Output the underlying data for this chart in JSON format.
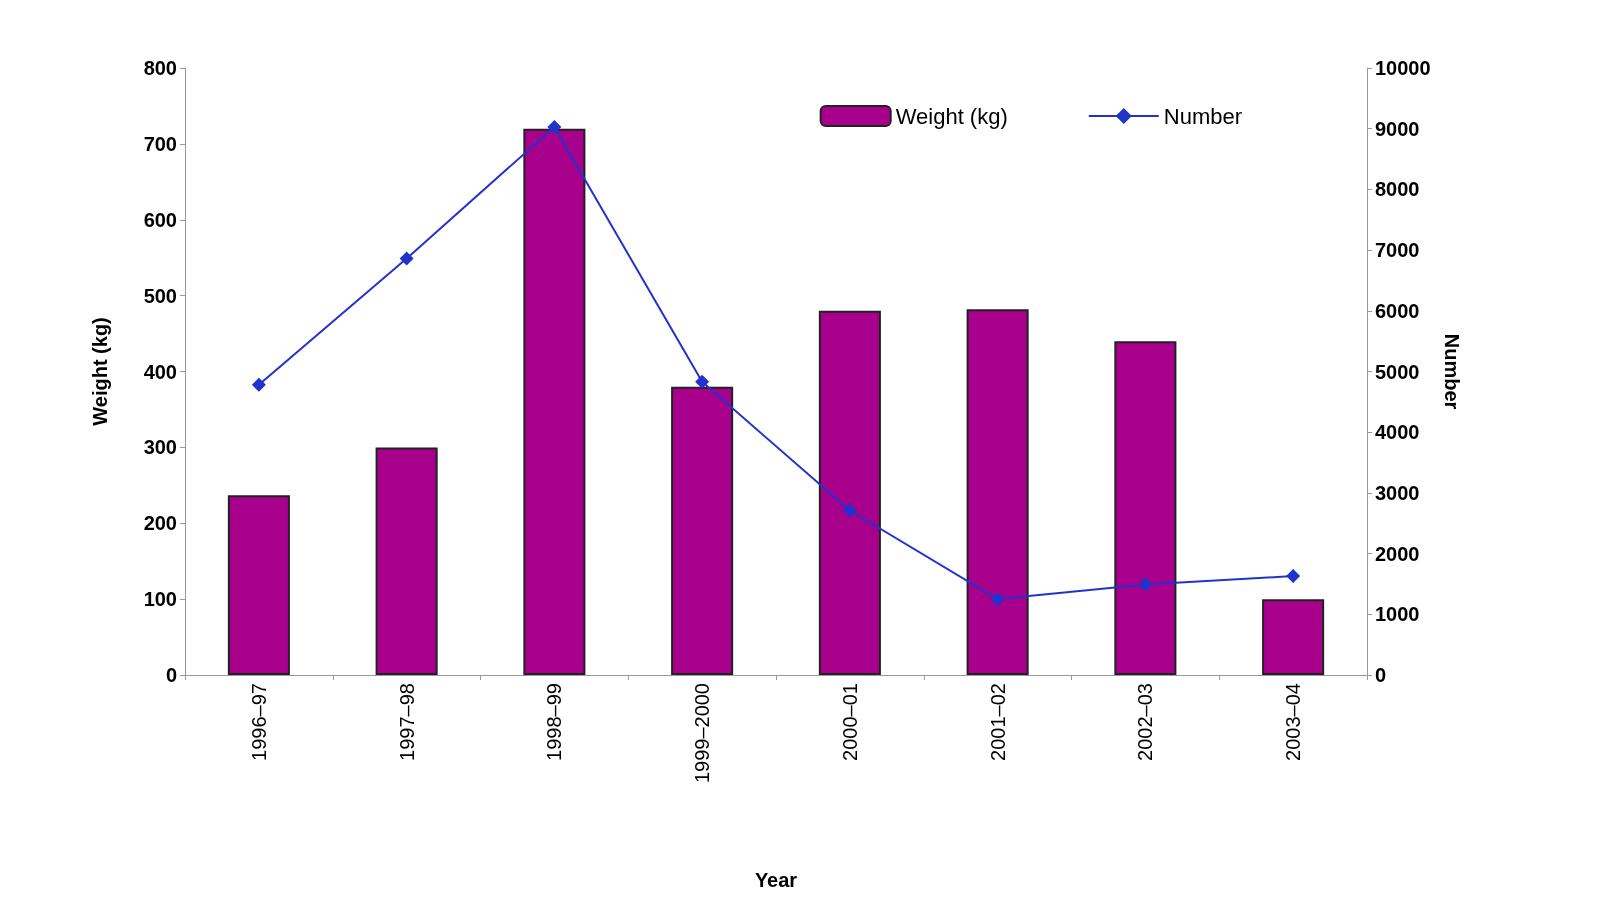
{
  "chart_data": {
    "type": "bar",
    "xlabel": "Year",
    "ylabel": "Weight (kg)",
    "y2label": "Number",
    "categories": [
      "1996–97",
      "1997–98",
      "1998–99",
      "1999–2000",
      "2000–01",
      "2001–02",
      "2002–03",
      "2003–04"
    ],
    "series": [
      {
        "name": "Weight (kg)",
        "color": "#a8008c",
        "values": [
          237,
          300,
          720,
          380,
          480,
          482,
          440,
          100
        ]
      },
      {
        "name": "Number",
        "type": "line",
        "axis": "y2",
        "color": "#2233cc",
        "marker": "diamond",
        "values": [
          4780,
          6860,
          9030,
          4830,
          2710,
          1250,
          1490,
          1630
        ]
      }
    ],
    "ylim": [
      0,
      800
    ],
    "yticks": [
      0,
      100,
      200,
      300,
      400,
      500,
      600,
      700,
      800
    ],
    "y2lim": [
      0,
      10000
    ],
    "y2ticks": [
      0,
      1000,
      2000,
      3000,
      4000,
      5000,
      6000,
      7000,
      8000,
      9000,
      10000
    ],
    "grid": false,
    "legend": "top right"
  }
}
